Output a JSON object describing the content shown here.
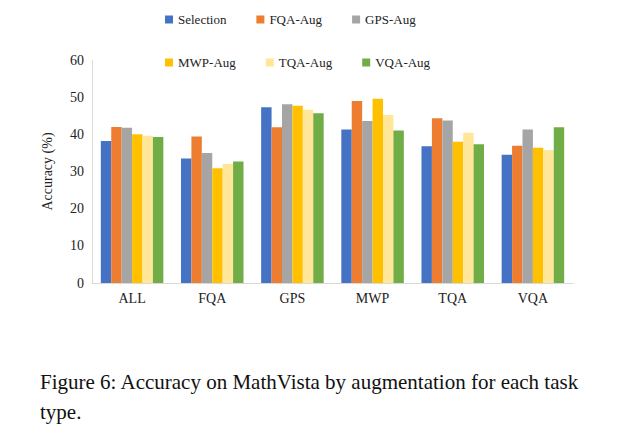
{
  "chart_data": {
    "type": "bar",
    "caption": "Figure 6: Accuracy on MathVista by augmentation for each task type.",
    "y_label": "Accuracy (%)",
    "categories": [
      "ALL",
      "FQA",
      "GPS",
      "MWP",
      "TQA",
      "VQA"
    ],
    "series": [
      {
        "name": "Selection",
        "color": "#4472c4",
        "values": [
          38.2,
          33.5,
          47.3,
          41.3,
          36.8,
          34.5
        ]
      },
      {
        "name": "FQA-Aug",
        "color": "#ed7d31",
        "values": [
          42.0,
          39.4,
          41.9,
          49.0,
          44.3,
          36.9
        ]
      },
      {
        "name": "GPS-Aug",
        "color": "#a5a5a5",
        "values": [
          41.8,
          35.0,
          48.1,
          43.6,
          43.7,
          41.3
        ]
      },
      {
        "name": "MWP-Aug",
        "color": "#ffc000",
        "values": [
          40.0,
          30.9,
          47.7,
          49.6,
          38.0,
          36.4
        ]
      },
      {
        "name": "TQA-Aug",
        "color": "#ffe699",
        "values": [
          39.6,
          32.0,
          46.6,
          45.2,
          40.4,
          35.8
        ]
      },
      {
        "name": "VQA-Aug",
        "color": "#70ad47",
        "values": [
          39.3,
          32.7,
          45.7,
          41.0,
          37.3,
          41.9
        ]
      }
    ],
    "ylim": [
      0,
      60
    ],
    "yticks": [
      0,
      10,
      20,
      30,
      40,
      50,
      60
    ],
    "grid": false,
    "legend": "top"
  }
}
